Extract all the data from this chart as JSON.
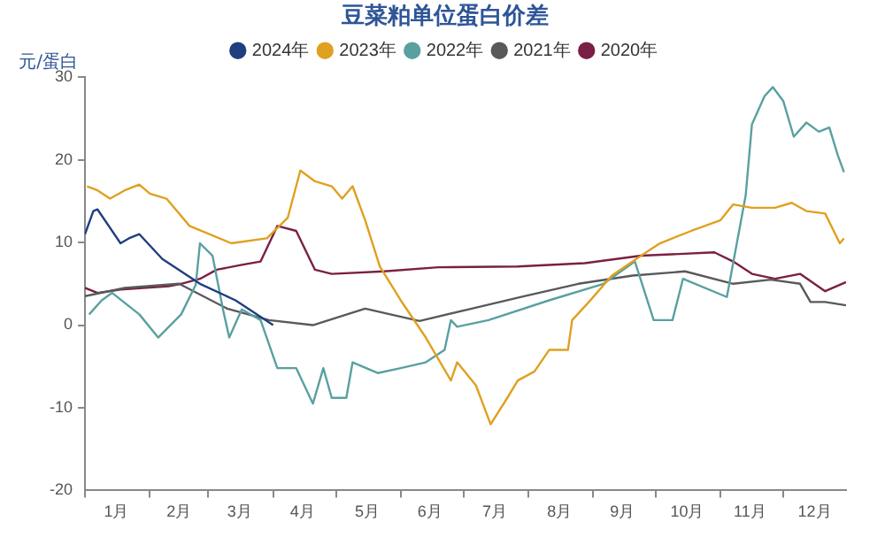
{
  "chart_data": {
    "type": "line",
    "title": "豆菜粕单位蛋白价差",
    "ylabel": "元/蛋白",
    "legend": "top",
    "grid": false,
    "marker": "none",
    "line_style": "solid",
    "xlim": [
      "--01-01",
      "--12-31"
    ],
    "xticks": [
      {
        "value": "--01-01",
        "label": null
      },
      {
        "value": "--01-16",
        "label": "1月"
      },
      {
        "value": "--02-01",
        "label": null
      },
      {
        "value": "--02-15",
        "label": "2月"
      },
      {
        "value": "--03-01",
        "label": null
      },
      {
        "value": "--03-16",
        "label": "3月"
      },
      {
        "value": "--04-01",
        "label": null
      },
      {
        "value": "--04-15",
        "label": "4月"
      },
      {
        "value": "--05-01",
        "label": null
      },
      {
        "value": "--05-16",
        "label": "5月"
      },
      {
        "value": "--06-01",
        "label": null
      },
      {
        "value": "--06-15",
        "label": "6月"
      },
      {
        "value": "--07-01",
        "label": null
      },
      {
        "value": "--07-16",
        "label": "7月"
      },
      {
        "value": "--08-01",
        "label": null
      },
      {
        "value": "--08-16",
        "label": "8月"
      },
      {
        "value": "--09-01",
        "label": null
      },
      {
        "value": "--09-15",
        "label": "9月"
      },
      {
        "value": "--10-01",
        "label": null
      },
      {
        "value": "--10-16",
        "label": "10月"
      },
      {
        "value": "--11-01",
        "label": null
      },
      {
        "value": "--11-15",
        "label": "11月"
      },
      {
        "value": "--12-01",
        "label": null
      },
      {
        "value": "--12-16",
        "label": "12月"
      }
    ],
    "ylim": [
      -20,
      30
    ],
    "yticks": [
      -20,
      -10,
      0,
      10,
      20,
      30
    ],
    "series": [
      {
        "name": "2024年",
        "color": "#1f3f7f",
        "x": [
          "--01-01",
          "--01-05",
          "--01-07",
          "--01-18",
          "--01-22",
          "--01-27",
          "--02-07",
          "--02-25",
          "--03-14",
          "--04-01"
        ],
        "values": [
          11,
          13.8,
          14,
          9.9,
          10.5,
          11,
          8,
          5,
          3,
          0
        ]
      },
      {
        "name": "2023年",
        "color": "#e0a020",
        "x": [
          "--01-02",
          "--01-07",
          "--01-13",
          "--01-20",
          "--01-27",
          "--02-01",
          "--02-09",
          "--02-20",
          "--03-12",
          "--03-29",
          "--04-08",
          "--04-14",
          "--04-21",
          "--04-29",
          "--05-04",
          "--05-09",
          "--05-15",
          "--05-22",
          "--06-01",
          "--06-13",
          "--06-25",
          "--06-28",
          "--07-07",
          "--07-14",
          "--07-22",
          "--07-27",
          "--08-04",
          "--08-11",
          "--08-20",
          "--08-22",
          "--08-30",
          "--09-10",
          "--09-24",
          "--10-03",
          "--10-18",
          "--11-01",
          "--11-07",
          "--11-16",
          "--11-27",
          "--12-05",
          "--12-12",
          "--12-21",
          "--12-28",
          "--12-30"
        ],
        "values": [
          16.8,
          16.3,
          15.3,
          16.3,
          17,
          15.9,
          15.3,
          12,
          9.9,
          10.5,
          13,
          18.7,
          17.4,
          16.8,
          15.3,
          16.8,
          12.7,
          7.1,
          3,
          -1.5,
          -6.7,
          -4.5,
          -7.3,
          -12,
          -8.8,
          -6.7,
          -5.6,
          -3,
          -3,
          0.6,
          2.8,
          6,
          8.4,
          9.9,
          11.4,
          12.7,
          14.6,
          14.2,
          14.2,
          14.8,
          13.8,
          13.5,
          9.9,
          10.5
        ]
      },
      {
        "name": "2022年",
        "color": "#5aa0a0",
        "x": [
          "--01-03",
          "--01-09",
          "--01-14",
          "--01-27",
          "--02-05",
          "--02-16",
          "--02-23",
          "--02-25",
          "--03-03",
          "--03-08",
          "--03-11",
          "--03-17",
          "--03-26",
          "--04-03",
          "--04-12",
          "--04-20",
          "--04-25",
          "--04-29",
          "--05-06",
          "--05-09",
          "--05-21",
          "--06-01",
          "--06-13",
          "--06-22",
          "--06-25",
          "--06-28",
          "--07-13",
          "--08-11",
          "--09-06",
          "--09-21",
          "--09-30",
          "--10-09",
          "--10-14",
          "--11-04",
          "--11-13",
          "--11-16",
          "--11-22",
          "--11-26",
          "--12-01",
          "--12-06",
          "--12-12",
          "--12-18",
          "--12-23",
          "--12-27",
          "--12-30"
        ],
        "values": [
          1.3,
          3,
          3.9,
          1.3,
          -1.5,
          1.3,
          4.9,
          9.9,
          8.4,
          1.9,
          -1.5,
          1.9,
          0.6,
          -5.2,
          -5.2,
          -9.5,
          -5.2,
          -8.8,
          -8.8,
          -4.5,
          -5.8,
          -5.2,
          -4.5,
          -3,
          0.6,
          -0.2,
          0.6,
          3,
          5,
          7.7,
          0.6,
          0.6,
          5.6,
          3.4,
          15.7,
          24.3,
          27.7,
          28.8,
          27.1,
          22.8,
          24.5,
          23.4,
          23.9,
          20.6,
          18.5
        ]
      },
      {
        "name": "2021年",
        "color": "#595959",
        "x": [
          "--01-01",
          "--01-20",
          "--02-15",
          "--03-10",
          "--03-30",
          "--04-20",
          "--05-15",
          "--06-10",
          "--07-05",
          "--07-30",
          "--08-25",
          "--09-20",
          "--10-15",
          "--11-07",
          "--11-25",
          "--12-09",
          "--12-14",
          "--12-21",
          "--12-31"
        ],
        "values": [
          3.5,
          4.5,
          5,
          2,
          0.6,
          0,
          2,
          0.5,
          2,
          3.5,
          5,
          6,
          6.5,
          5,
          5.5,
          5,
          2.8,
          2.8,
          2.4
        ]
      },
      {
        "name": "2020年",
        "color": "#7a1f45",
        "x": [
          "--01-01",
          "--01-07",
          "--01-18",
          "--02-10",
          "--02-16",
          "--02-25",
          "--03-05",
          "--03-17",
          "--03-26",
          "--04-03",
          "--04-12",
          "--04-21",
          "--04-29",
          "--05-24",
          "--06-19",
          "--07-27",
          "--08-28",
          "--09-24",
          "--10-29",
          "--11-07",
          "--11-16",
          "--11-27",
          "--12-09",
          "--12-21",
          "--12-31"
        ],
        "values": [
          4.5,
          3.9,
          4.3,
          4.7,
          5,
          5.6,
          6.7,
          7.3,
          7.7,
          12,
          11.4,
          6.7,
          6.2,
          6.5,
          7,
          7.1,
          7.5,
          8.4,
          8.8,
          7.7,
          6.2,
          5.6,
          6.2,
          4.1,
          5.2
        ]
      }
    ]
  }
}
